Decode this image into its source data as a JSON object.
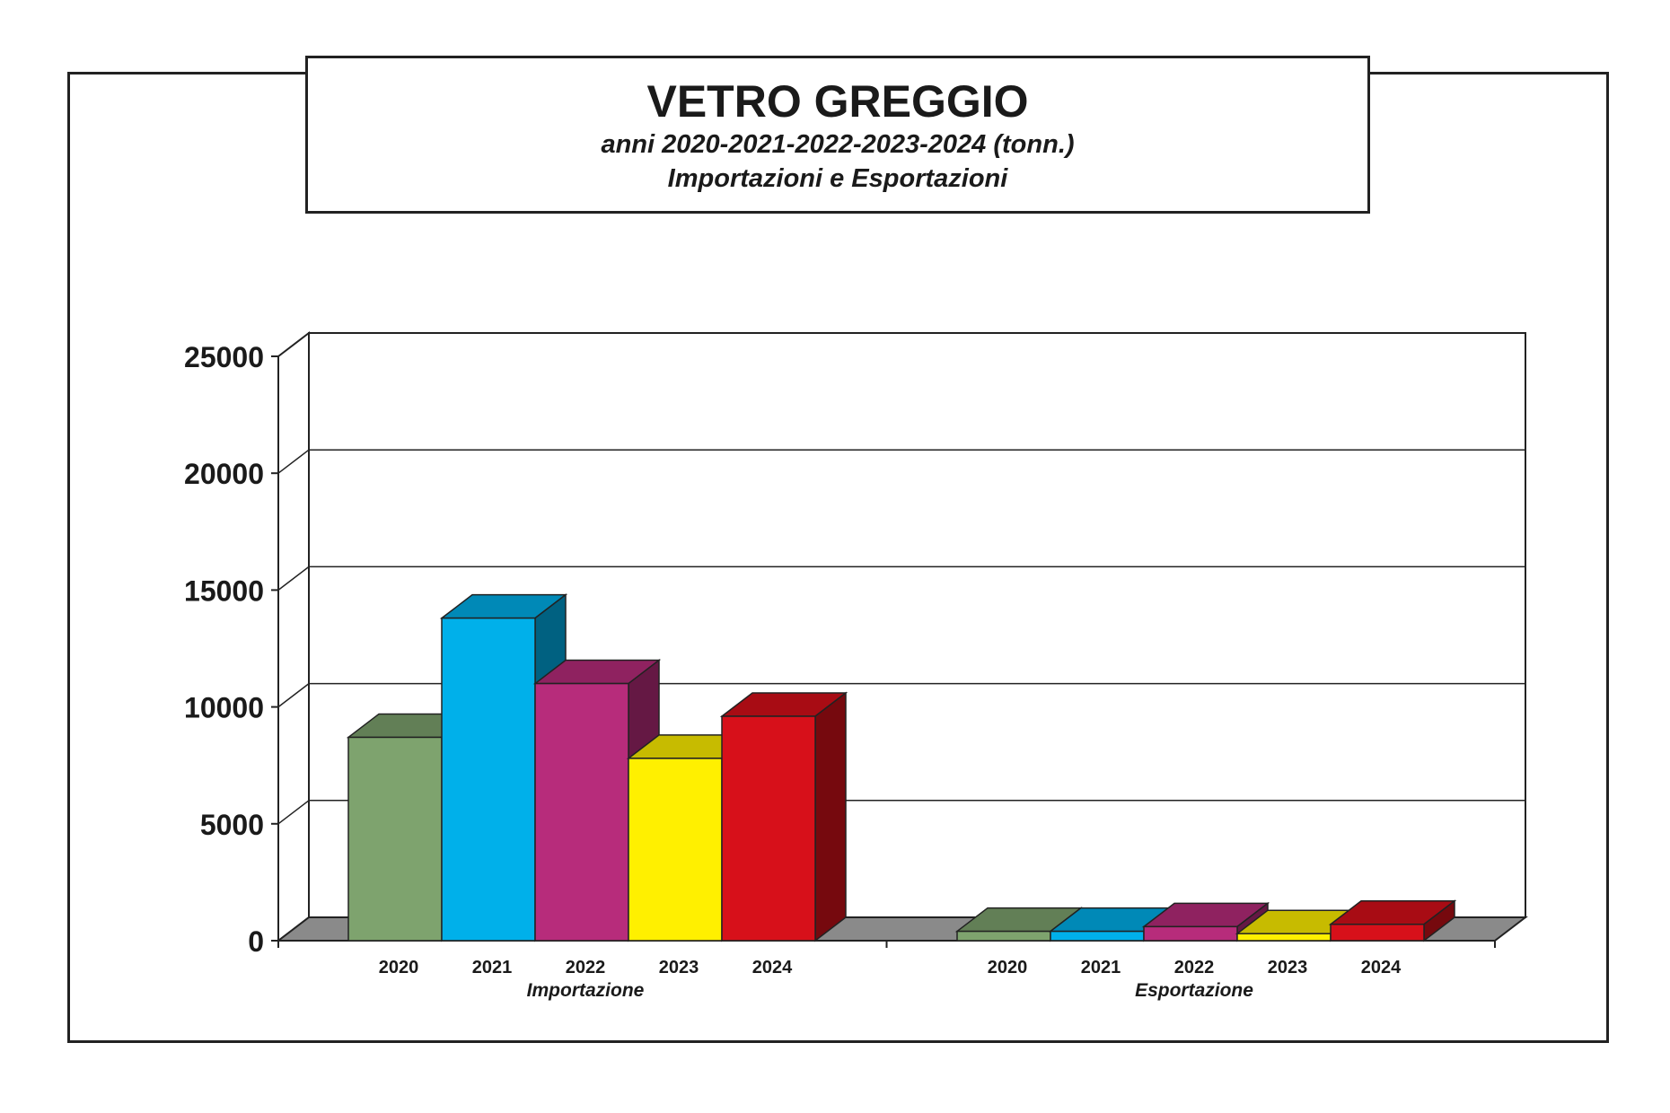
{
  "title": "VETRO GREGGIO",
  "subtitle": "anni 2020-2021-2022-2023-2024 (tonn.)",
  "subtitle2": "Importazioni e Esportazioni",
  "chart_data": {
    "type": "bar",
    "style": "3d-clustered",
    "groups": [
      "Importazione",
      "Esportazione"
    ],
    "categories": [
      "2020",
      "2021",
      "2022",
      "2023",
      "2024"
    ],
    "series": [
      {
        "group": "Importazione",
        "values": [
          8700,
          13800,
          11000,
          7800,
          9600
        ]
      },
      {
        "group": "Esportazione",
        "values": [
          400,
          400,
          600,
          300,
          700
        ]
      }
    ],
    "bar_colors": [
      "#7ea36e",
      "#00b0ea",
      "#b72c7b",
      "#fff000",
      "#d7101a"
    ],
    "yticks": [
      0,
      5000,
      10000,
      15000,
      20000,
      25000
    ],
    "ylim": [
      0,
      25000
    ],
    "grid": true,
    "legend": "none"
  }
}
